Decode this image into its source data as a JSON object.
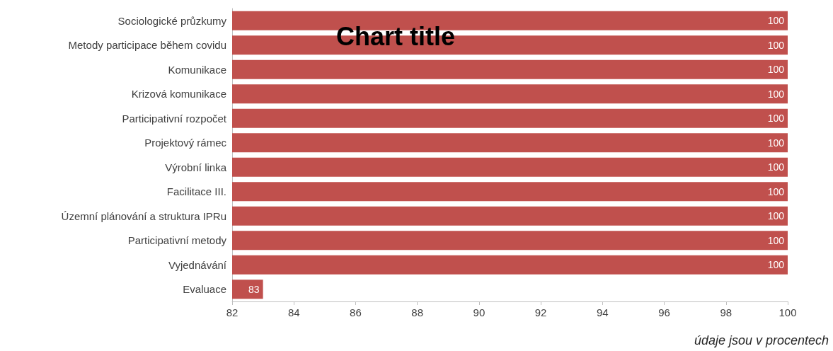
{
  "chart_data": {
    "type": "bar",
    "orientation": "horizontal",
    "title": "Chart title",
    "xlabel": "údaje jsou v procentech",
    "categories": [
      "Sociologické průzkumy",
      "Metody participace během covidu",
      "Komunikace",
      "Krizová komunikace",
      "Participativní rozpočet",
      "Projektový rámec",
      "Výrobní linka",
      "Facilitace III.",
      "Územní plánování a struktura IPRu",
      "Participativní metody",
      "Vyjednávání",
      "Evaluace"
    ],
    "values": [
      100,
      100,
      100,
      100,
      100,
      100,
      100,
      100,
      100,
      100,
      100,
      83
    ],
    "color": "#c0504d",
    "data_labels": true,
    "xlim": [
      82,
      100
    ],
    "xticks": [
      82,
      84,
      86,
      88,
      90,
      92,
      94,
      96,
      98,
      100
    ],
    "grid": false
  }
}
